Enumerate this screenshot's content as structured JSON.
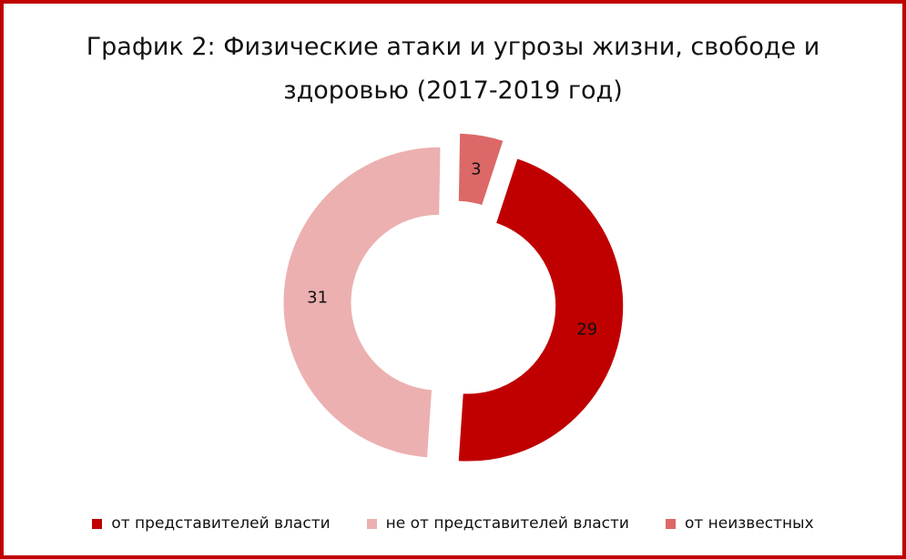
{
  "title": "График 2: Физические атаки и угрозы жизни, свободе и здоровью (2017-2019 год)",
  "chart_data": {
    "type": "pie",
    "variant": "donut",
    "exploded": true,
    "categories": [
      "от представителей власти",
      "не от представителей власти",
      "от неизвестных"
    ],
    "values": [
      29,
      31,
      3
    ],
    "colors": [
      "#c00000",
      "#ecb0b0",
      "#dc6868"
    ],
    "data_labels": [
      "29",
      "31",
      "3"
    ],
    "legend_position": "bottom"
  },
  "frame_color": "#c00000"
}
